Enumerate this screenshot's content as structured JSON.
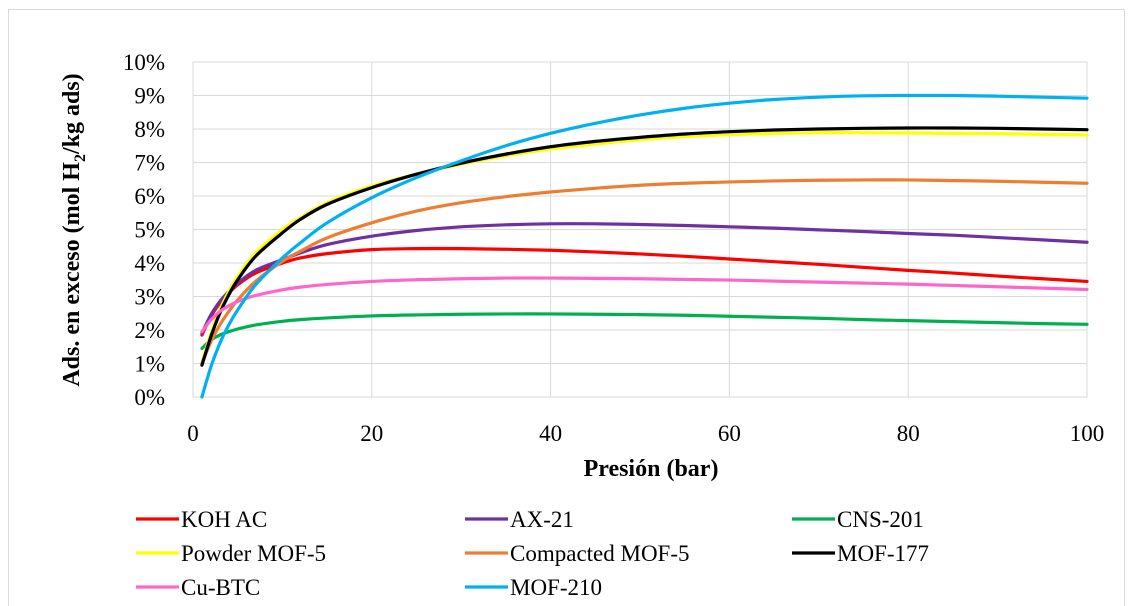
{
  "chart_data": {
    "type": "line",
    "title": "",
    "xlabel": "Presión (bar)",
    "ylabel_parts": [
      "Ads. en exceso (mol H",
      "2",
      "/kg ads)"
    ],
    "xlim": [
      0,
      100
    ],
    "ylim": [
      0,
      10
    ],
    "x_ticks": [
      0,
      20,
      40,
      60,
      80,
      100
    ],
    "y_ticks": [
      0,
      1,
      2,
      3,
      4,
      5,
      6,
      7,
      8,
      9,
      10
    ],
    "y_tick_labels": [
      "0%",
      "1%",
      "2%",
      "3%",
      "4%",
      "5%",
      "6%",
      "7%",
      "8%",
      "9%",
      "10%"
    ],
    "grid": true,
    "legend_position": "bottom",
    "x": [
      1,
      2,
      3,
      4,
      5,
      7,
      10,
      12,
      15,
      20,
      25,
      30,
      35,
      40,
      45,
      50,
      55,
      60,
      65,
      70,
      75,
      80,
      85,
      90,
      95,
      100
    ],
    "series": [
      {
        "name": "KOH AC",
        "color": "#ff0000",
        "values": [
          1.85,
          2.4,
          2.8,
          3.1,
          3.35,
          3.7,
          4.0,
          4.15,
          4.28,
          4.4,
          4.43,
          4.43,
          4.41,
          4.38,
          4.33,
          4.27,
          4.2,
          4.12,
          4.04,
          3.96,
          3.87,
          3.78,
          3.7,
          3.61,
          3.53,
          3.45
        ]
      },
      {
        "name": "AX-21",
        "color": "#7030a0",
        "values": [
          1.9,
          2.45,
          2.85,
          3.15,
          3.4,
          3.78,
          4.1,
          4.3,
          4.55,
          4.8,
          4.97,
          5.08,
          5.14,
          5.17,
          5.17,
          5.15,
          5.12,
          5.08,
          5.04,
          4.99,
          4.94,
          4.88,
          4.83,
          4.76,
          4.69,
          4.62
        ]
      },
      {
        "name": "CNS-201",
        "color": "#00b050",
        "values": [
          1.45,
          1.7,
          1.85,
          1.95,
          2.03,
          2.15,
          2.26,
          2.31,
          2.36,
          2.42,
          2.45,
          2.47,
          2.48,
          2.48,
          2.47,
          2.46,
          2.44,
          2.41,
          2.38,
          2.35,
          2.31,
          2.28,
          2.25,
          2.22,
          2.19,
          2.17
        ]
      },
      {
        "name": "Powder MOF-5",
        "color": "#ffff00",
        "values": [
          1.0,
          1.9,
          2.6,
          3.15,
          3.6,
          4.3,
          5.0,
          5.35,
          5.8,
          6.3,
          6.65,
          6.95,
          7.2,
          7.4,
          7.55,
          7.68,
          7.77,
          7.83,
          7.87,
          7.89,
          7.89,
          7.88,
          7.87,
          7.86,
          7.84,
          7.82
        ]
      },
      {
        "name": "Compacted MOF-5",
        "color": "#ed7d31",
        "values": [
          1.0,
          1.65,
          2.15,
          2.55,
          2.9,
          3.45,
          4.05,
          4.35,
          4.75,
          5.2,
          5.55,
          5.8,
          5.98,
          6.12,
          6.23,
          6.32,
          6.38,
          6.42,
          6.45,
          6.47,
          6.48,
          6.48,
          6.46,
          6.44,
          6.41,
          6.38
        ]
      },
      {
        "name": "MOF-177",
        "color": "#000000",
        "values": [
          0.95,
          1.8,
          2.5,
          3.05,
          3.5,
          4.2,
          4.9,
          5.3,
          5.75,
          6.25,
          6.65,
          6.98,
          7.25,
          7.47,
          7.63,
          7.75,
          7.85,
          7.92,
          7.97,
          8.0,
          8.02,
          8.03,
          8.03,
          8.02,
          8.0,
          7.98
        ]
      },
      {
        "name": "Cu-BTC",
        "color": "#ff66cc",
        "values": [
          1.95,
          2.3,
          2.55,
          2.72,
          2.85,
          3.03,
          3.2,
          3.28,
          3.36,
          3.45,
          3.5,
          3.53,
          3.55,
          3.55,
          3.54,
          3.53,
          3.51,
          3.49,
          3.46,
          3.43,
          3.4,
          3.37,
          3.33,
          3.29,
          3.25,
          3.21
        ]
      },
      {
        "name": "MOF-210",
        "color": "#00b0f0",
        "values": [
          0.0,
          0.9,
          1.6,
          2.15,
          2.6,
          3.35,
          4.15,
          4.6,
          5.2,
          5.95,
          6.55,
          7.05,
          7.5,
          7.87,
          8.17,
          8.42,
          8.62,
          8.77,
          8.88,
          8.95,
          8.99,
          9.0,
          9.0,
          8.98,
          8.95,
          8.92
        ]
      }
    ]
  }
}
